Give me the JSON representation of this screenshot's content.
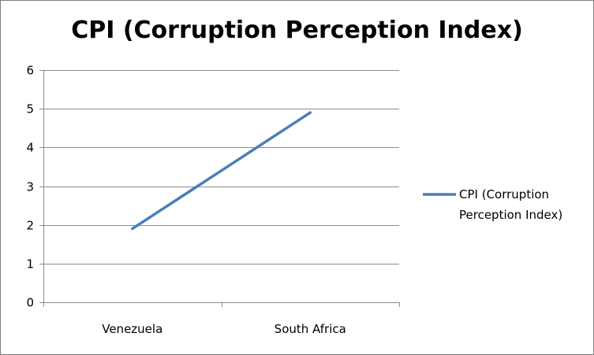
{
  "chart_data": {
    "type": "line",
    "title": "CPI (Corruption Perception Index)",
    "xlabel": "",
    "ylabel": "",
    "categories": [
      "Venezuela",
      "South Africa"
    ],
    "series": [
      {
        "name": "CPI (Corruption Perception Index)",
        "values": [
          1.9,
          4.9
        ],
        "color": "#4a7ebb"
      }
    ],
    "ylim": [
      0,
      6
    ],
    "yticks": [
      "0",
      "1",
      "2",
      "3",
      "4",
      "5",
      "6"
    ],
    "grid": true,
    "legend": {
      "position": "right",
      "lines": [
        "CPI (Corruption",
        "Perception Index)"
      ]
    },
    "colors": {
      "gridline": "#8c8c8c",
      "axis": "#8c8c8c",
      "series": "#4a7ebb"
    }
  }
}
